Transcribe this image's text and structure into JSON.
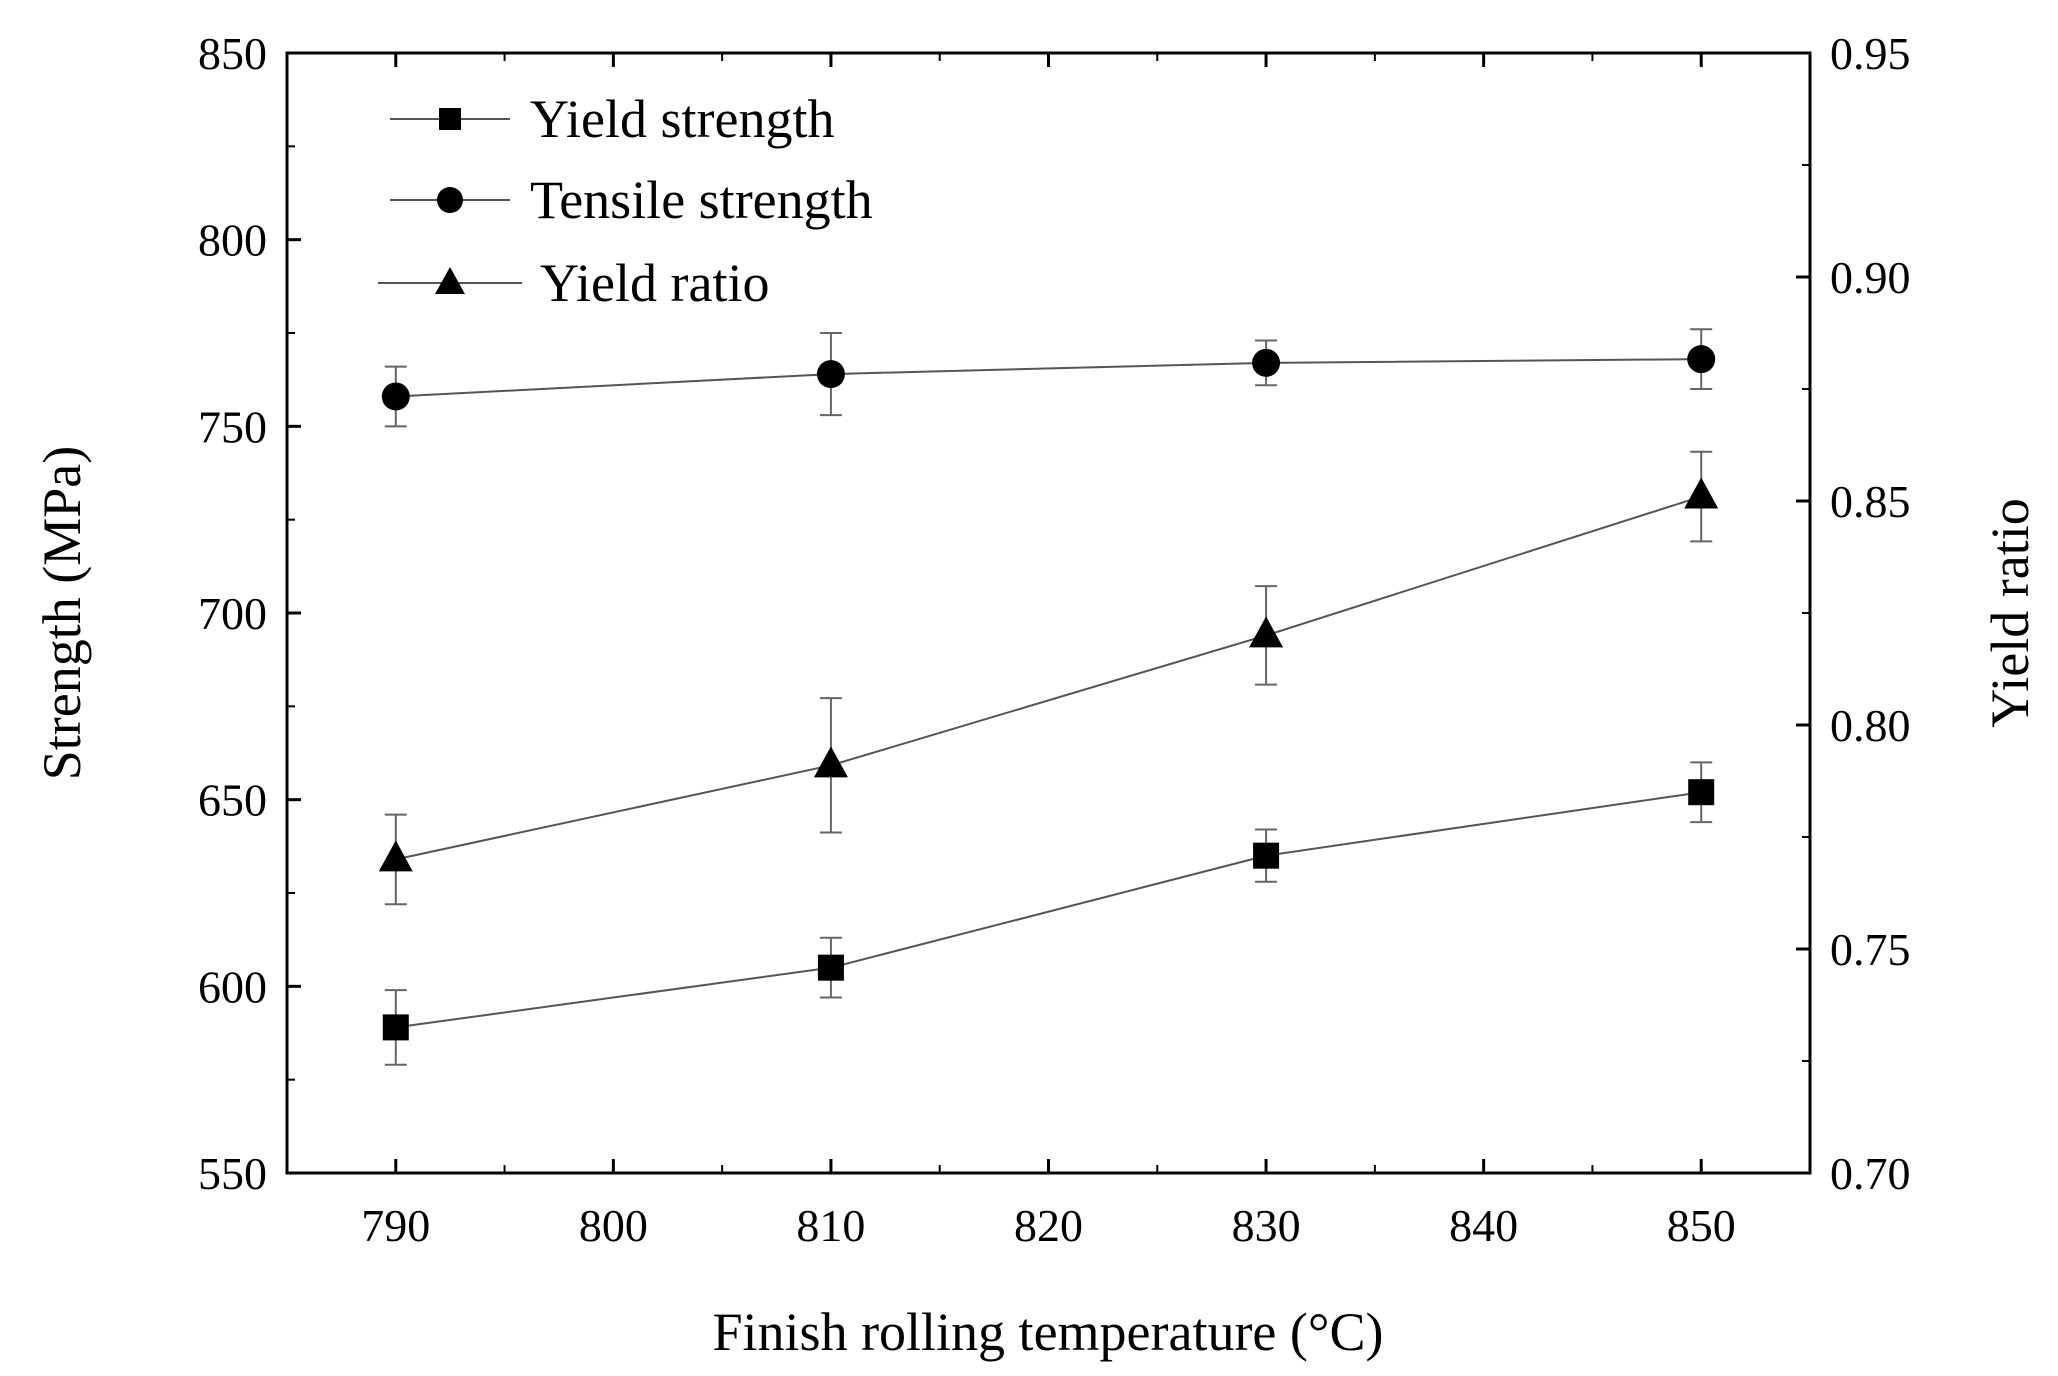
{
  "chart_data": {
    "type": "line",
    "xlabel": "Finish rolling temperature (°C)",
    "ylabel_left": "Strength (MPa)",
    "ylabel_right": "Yield ratio",
    "xlim": [
      785,
      855
    ],
    "ylim_left": [
      550,
      850
    ],
    "ylim_right": [
      0.7,
      0.95
    ],
    "x_ticks": [
      "790",
      "800",
      "810",
      "820",
      "830",
      "840",
      "850"
    ],
    "y_left_ticks": [
      "550",
      "600",
      "650",
      "700",
      "750",
      "800",
      "850"
    ],
    "y_right_ticks": [
      "0.70",
      "0.75",
      "0.80",
      "0.85",
      "0.90",
      "0.95"
    ],
    "legend_position": "top-left",
    "series": [
      {
        "name": "Yield strength",
        "axis": "left",
        "marker": "square",
        "x": [
          790,
          810,
          830,
          850
        ],
        "values": [
          589,
          605,
          635,
          652
        ],
        "errors": [
          10,
          8,
          7,
          8
        ]
      },
      {
        "name": "Tensile strength",
        "axis": "left",
        "marker": "circle",
        "x": [
          790,
          810,
          830,
          850
        ],
        "values": [
          758,
          764,
          767,
          768
        ],
        "errors": [
          8,
          11,
          6,
          8
        ]
      },
      {
        "name": "Yield ratio",
        "axis": "right",
        "marker": "triangle",
        "x": [
          790,
          810,
          830,
          850
        ],
        "values": [
          0.77,
          0.791,
          0.82,
          0.851
        ],
        "errors": [
          0.01,
          0.015,
          0.011,
          0.01
        ]
      }
    ]
  }
}
